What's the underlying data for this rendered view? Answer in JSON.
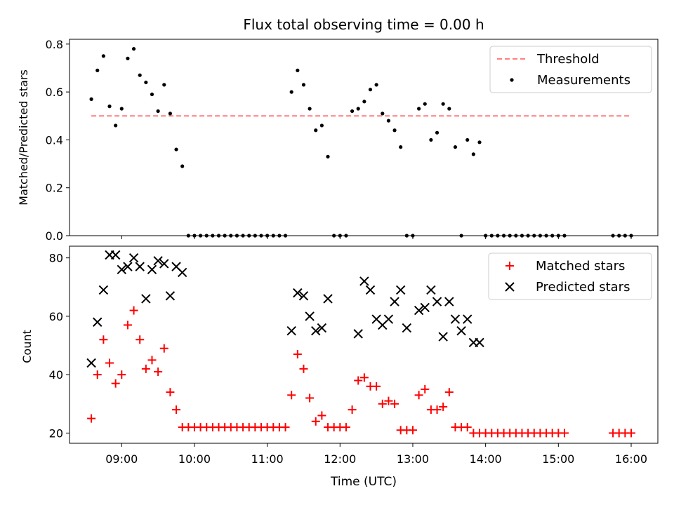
{
  "chart_data": [
    {
      "type": "line+scatter",
      "title": "Flux total observing time = 0.00 h",
      "ylabel": "Matched/Predicted stars",
      "xlabel": "",
      "ylim": [
        0,
        0.82
      ],
      "y_ticks": [
        "0.0",
        "0.2",
        "0.4",
        "0.6",
        "0.8"
      ],
      "x_ticks_hidden": true,
      "legend_position": "top-right",
      "legend": [
        "Threshold",
        "Measurements"
      ],
      "series": [
        {
          "name": "Threshold",
          "kind": "dashed-line",
          "color": "#ff7f7f",
          "x": [
            "08:35",
            "16:00"
          ],
          "y": [
            0.5,
            0.5
          ]
        },
        {
          "name": "Measurements",
          "kind": "scatter",
          "color": "#000000",
          "x": [
            "08:35",
            "08:40",
            "08:45",
            "08:50",
            "08:55",
            "09:00",
            "09:05",
            "09:10",
            "09:15",
            "09:20",
            "09:25",
            "09:30",
            "09:35",
            "09:40",
            "09:45",
            "09:50",
            "09:55",
            "10:00",
            "10:05",
            "10:10",
            "10:15",
            "10:20",
            "10:25",
            "10:30",
            "10:35",
            "10:40",
            "10:45",
            "10:50",
            "10:55",
            "11:00",
            "11:05",
            "11:10",
            "11:15",
            "11:20",
            "11:25",
            "11:30",
            "11:35",
            "11:40",
            "11:45",
            "11:50",
            "11:55",
            "12:00",
            "12:05",
            "12:10",
            "12:15",
            "12:20",
            "12:25",
            "12:30",
            "12:35",
            "12:40",
            "12:45",
            "12:50",
            "12:55",
            "13:00",
            "13:05",
            "13:10",
            "13:15",
            "13:20",
            "13:25",
            "13:30",
            "13:35",
            "13:40",
            "13:45",
            "13:50",
            "13:55",
            "14:00",
            "14:05",
            "14:10",
            "14:15",
            "14:20",
            "14:25",
            "14:30",
            "14:35",
            "14:40",
            "14:45",
            "14:50",
            "14:55",
            "15:00",
            "15:05",
            "15:45",
            "15:50",
            "15:55",
            "16:00"
          ],
          "y": [
            0.57,
            0.69,
            0.75,
            0.54,
            0.46,
            0.53,
            0.74,
            0.78,
            0.67,
            0.64,
            0.59,
            0.52,
            0.63,
            0.51,
            0.36,
            0.29,
            0.0,
            0.0,
            0.0,
            0.0,
            0.0,
            0.0,
            0.0,
            0.0,
            0.0,
            0.0,
            0.0,
            0.0,
            0.0,
            0.0,
            0.0,
            0.0,
            0.0,
            0.6,
            0.69,
            0.63,
            0.53,
            0.44,
            0.46,
            0.33,
            0.0,
            0.0,
            0.0,
            0.52,
            0.53,
            0.56,
            0.61,
            0.63,
            0.51,
            0.48,
            0.44,
            0.37,
            0.0,
            0.0,
            0.53,
            0.55,
            0.4,
            0.43,
            0.55,
            0.53,
            0.37,
            0.0,
            0.4,
            0.34,
            0.39,
            0.0,
            0.0,
            0.0,
            0.0,
            0.0,
            0.0,
            0.0,
            0.0,
            0.0,
            0.0,
            0.0,
            0.0,
            0.0,
            0.0,
            0.0,
            0.0,
            0.0,
            0.0
          ]
        }
      ]
    },
    {
      "type": "scatter",
      "title": "",
      "ylabel": "Count",
      "xlabel": "Time (UTC)",
      "ylim": [
        16.5,
        84
      ],
      "y_ticks": [
        "20",
        "40",
        "60",
        "80"
      ],
      "x_ticks": [
        "09:00",
        "10:00",
        "11:00",
        "12:00",
        "13:00",
        "14:00",
        "15:00",
        "16:00"
      ],
      "xlim": [
        "08:17",
        "16:22"
      ],
      "legend_position": "top-right",
      "legend": [
        "Matched stars",
        "Predicted stars"
      ],
      "series": [
        {
          "name": "Matched stars",
          "marker": "+",
          "color": "#ff0000",
          "x": [
            "08:35",
            "08:40",
            "08:45",
            "08:50",
            "08:55",
            "09:00",
            "09:05",
            "09:10",
            "09:15",
            "09:20",
            "09:25",
            "09:30",
            "09:35",
            "09:40",
            "09:45",
            "09:50",
            "09:55",
            "10:00",
            "10:05",
            "10:10",
            "10:15",
            "10:20",
            "10:25",
            "10:30",
            "10:35",
            "10:40",
            "10:45",
            "10:50",
            "10:55",
            "11:00",
            "11:05",
            "11:10",
            "11:15",
            "11:20",
            "11:25",
            "11:30",
            "11:35",
            "11:40",
            "11:45",
            "11:50",
            "11:55",
            "12:00",
            "12:05",
            "12:10",
            "12:15",
            "12:20",
            "12:25",
            "12:30",
            "12:35",
            "12:40",
            "12:45",
            "12:50",
            "12:55",
            "13:00",
            "13:05",
            "13:10",
            "13:15",
            "13:20",
            "13:25",
            "13:30",
            "13:35",
            "13:40",
            "13:45",
            "13:50",
            "13:55",
            "14:00",
            "14:05",
            "14:10",
            "14:15",
            "14:20",
            "14:25",
            "14:30",
            "14:35",
            "14:40",
            "14:45",
            "14:50",
            "14:55",
            "15:00",
            "15:05",
            "15:45",
            "15:50",
            "15:55",
            "16:00"
          ],
          "y": [
            25,
            40,
            52,
            44,
            37,
            40,
            57,
            62,
            52,
            42,
            45,
            41,
            49,
            34,
            28,
            22,
            22,
            22,
            22,
            22,
            22,
            22,
            22,
            22,
            22,
            22,
            22,
            22,
            22,
            22,
            22,
            22,
            22,
            33,
            47,
            42,
            32,
            24,
            26,
            22,
            22,
            22,
            22,
            28,
            38,
            39,
            36,
            36,
            30,
            31,
            30,
            21,
            21,
            21,
            33,
            35,
            28,
            28,
            29,
            34,
            22,
            22,
            22,
            20,
            20,
            20,
            20,
            20,
            20,
            20,
            20,
            20,
            20,
            20,
            20,
            20,
            20,
            20,
            20,
            20,
            20,
            20,
            20
          ]
        },
        {
          "name": "Predicted stars",
          "marker": "x",
          "color": "#000000",
          "x": [
            "08:35",
            "08:40",
            "08:45",
            "08:50",
            "08:55",
            "09:00",
            "09:05",
            "09:10",
            "09:15",
            "09:20",
            "09:25",
            "09:30",
            "09:35",
            "09:40",
            "09:45",
            "09:50",
            "11:20",
            "11:25",
            "11:30",
            "11:35",
            "11:40",
            "11:45",
            "11:50",
            "12:15",
            "12:20",
            "12:25",
            "12:30",
            "12:35",
            "12:40",
            "12:45",
            "12:50",
            "12:55",
            "13:05",
            "13:10",
            "13:15",
            "13:20",
            "13:25",
            "13:30",
            "13:35",
            "13:40",
            "13:45",
            "13:50",
            "13:55"
          ],
          "y": [
            44,
            58,
            69,
            81,
            81,
            76,
            77,
            80,
            77,
            66,
            76,
            79,
            78,
            67,
            77,
            75,
            55,
            68,
            67,
            60,
            55,
            56,
            66,
            54,
            72,
            69,
            59,
            57,
            59,
            65,
            69,
            56,
            62,
            63,
            69,
            65,
            53,
            65,
            59,
            55,
            59,
            51,
            51
          ]
        }
      ]
    }
  ]
}
